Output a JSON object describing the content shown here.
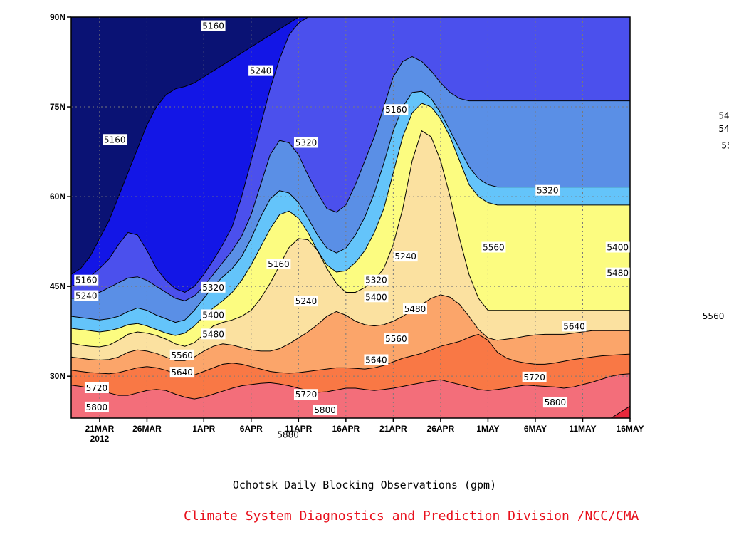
{
  "chart_data": {
    "type": "heatmap",
    "title": "Ochotsk Daily Blocking Observations (gpm)",
    "credit": "Climate System Diagnostics and Prediction Division /NCC/CMA",
    "x_ticks": [
      "21MAR",
      "26MAR",
      "1APR",
      "6APR",
      "11APR",
      "16APR",
      "21APR",
      "26APR",
      "1MAY",
      "6MAY",
      "11MAY",
      "16MAY"
    ],
    "x_year_label": "2012",
    "x_range": [
      "2012-03-18",
      "2012-05-16"
    ],
    "y_ticks": [
      "30N",
      "45N",
      "60N",
      "75N",
      "90N"
    ],
    "y_range": [
      23,
      90
    ],
    "grid": true,
    "levels": [
      5160,
      5240,
      5320,
      5400,
      5480,
      5560,
      5640,
      5720,
      5800,
      5880
    ],
    "level_colors": [
      "#0a1274",
      "#1316e6",
      "#4b50ed",
      "#5a8fe6",
      "#64c4fa",
      "#fcfc80",
      "#fbe1a0",
      "#fba56a",
      "#f97845",
      "#f36e7a",
      "#e8283c"
    ],
    "boundaries": [
      {
        "level": 5880,
        "lat": [
          23,
          23,
          23,
          23,
          23,
          23,
          22,
          22,
          22,
          22,
          22,
          22,
          22,
          22,
          22,
          22,
          22,
          22,
          22,
          22,
          22,
          22,
          22,
          22,
          22,
          22,
          22,
          22,
          22,
          22,
          22,
          22,
          22,
          22,
          22,
          22,
          22,
          22,
          22,
          22,
          22,
          22,
          22,
          22,
          22,
          22,
          22,
          22,
          22,
          22,
          22,
          22,
          22,
          22,
          22,
          22,
          22,
          23,
          24,
          25
        ]
      },
      {
        "level": 5800,
        "lat": [
          28.5,
          28.3,
          28.0,
          27.6,
          27.2,
          26.8,
          26.8,
          27.2,
          27.6,
          27.8,
          27.6,
          27.0,
          26.5,
          26.2,
          26.5,
          27.0,
          27.5,
          28.0,
          28.4,
          28.6,
          28.8,
          28.9,
          28.7,
          28.4,
          28.0,
          27.6,
          27.3,
          27.4,
          27.7,
          28.0,
          28.0,
          27.8,
          27.6,
          27.8,
          28.0,
          28.3,
          28.6,
          28.9,
          29.2,
          29.4,
          29.0,
          28.6,
          28.2,
          27.8,
          27.6,
          27.8,
          28.0,
          28.3,
          28.5,
          28.4,
          28.3,
          28.2,
          28.0,
          28.2,
          28.6,
          29.0,
          29.5,
          30.0,
          30.3,
          30.4
        ]
      },
      {
        "level": 5720,
        "lat": [
          31.0,
          30.8,
          30.6,
          30.5,
          30.4,
          30.6,
          31.0,
          31.4,
          31.6,
          31.4,
          31.0,
          30.4,
          30.0,
          30.2,
          30.8,
          31.4,
          32.0,
          32.2,
          32.0,
          31.6,
          31.2,
          30.8,
          30.6,
          30.5,
          30.6,
          30.8,
          31.0,
          31.2,
          31.4,
          31.4,
          31.3,
          31.2,
          31.4,
          31.8,
          32.4,
          33.0,
          33.4,
          33.8,
          34.4,
          35.0,
          35.4,
          35.8,
          36.5,
          37.0,
          36.0,
          34.0,
          33.0,
          32.5,
          32.2,
          32.0,
          32.0,
          32.2,
          32.5,
          32.8,
          33.0,
          33.2,
          33.4,
          33.5,
          33.6,
          33.7
        ]
      },
      {
        "level": 5640,
        "lat": [
          33.2,
          33.0,
          32.8,
          32.7,
          32.8,
          33.2,
          34.0,
          34.4,
          34.2,
          33.8,
          33.2,
          32.6,
          32.6,
          33.2,
          34.2,
          35.0,
          35.4,
          35.2,
          34.8,
          34.4,
          34.2,
          34.2,
          34.6,
          35.4,
          36.4,
          37.4,
          38.6,
          40.0,
          40.8,
          40.2,
          39.2,
          38.6,
          38.4,
          38.6,
          39.2,
          40.0,
          41.0,
          42.0,
          43.0,
          43.6,
          43.2,
          42.0,
          40.0,
          37.8,
          36.4,
          36.0,
          36.2,
          36.4,
          36.7,
          36.9,
          37.0,
          37.0,
          37.0,
          37.2,
          37.4,
          37.6,
          37.6,
          37.6,
          37.6,
          37.6
        ]
      },
      {
        "level": 5560,
        "lat": [
          35.5,
          35.2,
          35.0,
          34.9,
          35.2,
          36.0,
          37.0,
          37.4,
          37.2,
          36.8,
          36.2,
          35.4,
          35.0,
          35.6,
          37.0,
          38.4,
          39.0,
          39.4,
          40.0,
          41.0,
          43.0,
          45.5,
          48.5,
          51.5,
          53.0,
          52.8,
          51.0,
          48.0,
          45.5,
          44.0,
          44.0,
          44.8,
          46.0,
          48.0,
          52.0,
          58.0,
          66.0,
          71.0,
          70.0,
          66.0,
          60.0,
          53.0,
          47.0,
          43.0,
          41.0,
          41.0,
          41.0,
          41.0,
          41.0,
          41.0,
          41.0,
          41.0,
          41.0,
          41.0,
          41.0,
          41.0,
          41.0,
          41.0,
          41.0,
          41.0
        ]
      },
      {
        "level": 5480,
        "lat": [
          38.0,
          37.8,
          37.6,
          37.4,
          37.6,
          38.0,
          38.6,
          38.8,
          38.4,
          37.8,
          37.2,
          36.8,
          37.2,
          38.4,
          40.0,
          41.4,
          42.6,
          44.0,
          46.0,
          48.6,
          51.6,
          54.6,
          57.0,
          57.6,
          56.4,
          54.0,
          51.0,
          48.6,
          47.4,
          47.6,
          49.0,
          51.0,
          54.0,
          58.0,
          64.0,
          70.0,
          74.0,
          75.6,
          75.0,
          73.0,
          70.0,
          66.0,
          62.0,
          60.0,
          59.0,
          58.6,
          58.6,
          58.6,
          58.6,
          58.6,
          58.6,
          58.6,
          58.6,
          58.6,
          58.6,
          58.6,
          58.6,
          58.6,
          58.6,
          58.6
        ]
      },
      {
        "level": 5400,
        "lat": [
          40.0,
          39.8,
          39.6,
          39.4,
          39.6,
          40.0,
          40.8,
          41.4,
          41.0,
          40.2,
          39.6,
          39.0,
          39.4,
          41.0,
          43.0,
          45.0,
          46.6,
          48.0,
          50.0,
          53.0,
          56.6,
          59.6,
          61.0,
          60.6,
          59.0,
          56.4,
          53.6,
          51.4,
          50.6,
          51.4,
          53.6,
          56.6,
          60.6,
          65.6,
          71.0,
          75.0,
          77.4,
          77.6,
          76.4,
          74.0,
          71.0,
          68.0,
          65.0,
          63.0,
          62.0,
          61.6,
          61.6,
          61.6,
          61.6,
          61.6,
          61.6,
          61.6,
          61.6,
          61.6,
          61.6,
          61.6,
          61.6,
          61.6,
          61.6,
          61.6
        ]
      },
      {
        "level": 5320,
        "lat": [
          43.0,
          43.0,
          43.4,
          44.0,
          44.8,
          45.6,
          46.4,
          46.6,
          46.0,
          45.0,
          44.0,
          43.0,
          42.6,
          43.4,
          45.0,
          47.0,
          49.0,
          51.0,
          53.4,
          57.0,
          62.0,
          67.0,
          69.4,
          69.0,
          67.0,
          63.6,
          60.6,
          58.0,
          57.4,
          58.6,
          62.0,
          66.0,
          70.0,
          75.0,
          80.0,
          82.6,
          83.4,
          82.6,
          81.0,
          79.0,
          77.4,
          76.4,
          76.0,
          76.0,
          76.0,
          76.0,
          76.0,
          76.0,
          76.0,
          76.0,
          76.0,
          76.0,
          76.0,
          76.0,
          76.0,
          76.0,
          76.0,
          76.0,
          76.0,
          76.0
        ]
      },
      {
        "level": 5240,
        "lat": [
          45.0,
          45.6,
          46.6,
          48.0,
          49.6,
          52.0,
          54.0,
          53.6,
          51.0,
          48.0,
          46.0,
          44.6,
          44.0,
          45.0,
          47.0,
          49.4,
          52.0,
          55.0,
          60.0,
          66.0,
          72.0,
          78.0,
          83.0,
          87.0,
          89.0,
          90.0,
          90.0,
          90.0,
          90.0,
          90.0,
          90.0,
          90.0,
          90.0,
          90.0,
          90.0,
          90.0,
          90.0,
          90.0,
          90.0,
          90.0,
          90.0,
          90.0,
          90.0,
          90.0,
          90.0,
          90.0,
          90.0,
          90.0,
          90.0,
          90.0,
          90.0,
          90.0,
          90.0,
          90.0,
          90.0,
          90.0,
          90.0,
          90.0,
          90.0,
          90.0
        ]
      },
      {
        "level": 5160,
        "lat": [
          47.0,
          48.0,
          50.0,
          53.0,
          56.0,
          60.0,
          64.0,
          68.0,
          72.0,
          75.0,
          77.0,
          78.0,
          78.4,
          79.0,
          80.0,
          81.0,
          82.0,
          83.0,
          84.0,
          85.0,
          86.0,
          87.0,
          88.0,
          89.0,
          90.0,
          90.0,
          90.0,
          90.0,
          90.0,
          90.0,
          90.0,
          90.0,
          90.0,
          90.0,
          90.0,
          90.0,
          90.0,
          90.0,
          90.0,
          90.0,
          90.0,
          90.0,
          90.0,
          90.0,
          90.0,
          90.0,
          90.0,
          90.0,
          90.0,
          90.0,
          90.0,
          90.0,
          90.0,
          90.0,
          90.0,
          90.0,
          90.0,
          90.0,
          90.0,
          90.0
        ]
      }
    ],
    "contour_labels": [
      {
        "text": "5160",
        "day": 15.0,
        "lat": 88.5
      },
      {
        "text": "5240",
        "day": 20.0,
        "lat": 81.0
      },
      {
        "text": "5160",
        "day": 4.6,
        "lat": 69.5
      },
      {
        "text": "5320",
        "day": 24.8,
        "lat": 69.0
      },
      {
        "text": "5160",
        "day": 34.3,
        "lat": 74.5
      },
      {
        "text": "5320",
        "day": 50.3,
        "lat": 61.0
      },
      {
        "text": "5320",
        "day": 73.3,
        "lat": 76.0
      },
      {
        "text": "5400",
        "day": 69.5,
        "lat": 73.5
      },
      {
        "text": "5480",
        "day": 69.5,
        "lat": 71.3
      },
      {
        "text": "5560",
        "day": 69.8,
        "lat": 68.5
      },
      {
        "text": "5160",
        "day": 1.6,
        "lat": 46.0
      },
      {
        "text": "5240",
        "day": 1.6,
        "lat": 43.4
      },
      {
        "text": "5160",
        "day": 21.9,
        "lat": 48.7
      },
      {
        "text": "5320",
        "day": 15.0,
        "lat": 44.8
      },
      {
        "text": "5240",
        "day": 24.8,
        "lat": 42.5
      },
      {
        "text": "5320",
        "day": 32.2,
        "lat": 46.0
      },
      {
        "text": "5240",
        "day": 35.3,
        "lat": 50.0
      },
      {
        "text": "5400",
        "day": 32.2,
        "lat": 43.2
      },
      {
        "text": "5480",
        "day": 36.3,
        "lat": 41.2
      },
      {
        "text": "5560",
        "day": 44.6,
        "lat": 51.5
      },
      {
        "text": "5400",
        "day": 57.7,
        "lat": 51.5
      },
      {
        "text": "5480",
        "day": 57.7,
        "lat": 47.2
      },
      {
        "text": "5400",
        "day": 15.0,
        "lat": 40.2
      },
      {
        "text": "5480",
        "day": 15.0,
        "lat": 37.0
      },
      {
        "text": "5560",
        "day": 34.3,
        "lat": 36.2
      },
      {
        "text": "5640",
        "day": 32.2,
        "lat": 32.7
      },
      {
        "text": "5560",
        "day": 11.7,
        "lat": 33.5
      },
      {
        "text": "5640",
        "day": 11.7,
        "lat": 30.6
      },
      {
        "text": "5720",
        "day": 2.7,
        "lat": 28.0
      },
      {
        "text": "5800",
        "day": 2.7,
        "lat": 24.8
      },
      {
        "text": "5720",
        "day": 24.8,
        "lat": 26.9
      },
      {
        "text": "5800",
        "day": 26.8,
        "lat": 24.3
      },
      {
        "text": "5880",
        "day": 22.9,
        "lat": 20.2
      },
      {
        "text": "5640",
        "day": 53.1,
        "lat": 38.3
      },
      {
        "text": "5560",
        "day": 67.8,
        "lat": 40.0
      },
      {
        "text": "5640",
        "day": 74.9,
        "lat": 37.4
      },
      {
        "text": "5720",
        "day": 48.9,
        "lat": 29.8
      },
      {
        "text": "5800",
        "day": 51.1,
        "lat": 25.6
      },
      {
        "text": "5720",
        "day": 70.9,
        "lat": 29.2
      },
      {
        "text": "5800",
        "day": 70.9,
        "lat": 25.8
      }
    ]
  },
  "caption": {
    "title": "Ochotsk Daily Blocking Observations (gpm)",
    "credit": "Climate System Diagnostics and Prediction Division /NCC/CMA"
  }
}
